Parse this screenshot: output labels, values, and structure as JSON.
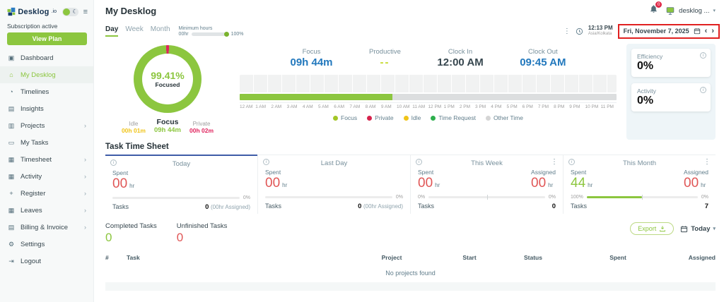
{
  "colors": {
    "accent_green": "#8cc63f",
    "time_blue": "#2278bd",
    "private_red": "#e0245e",
    "soft_red": "#e05656",
    "idle_yellow": "#f0c419",
    "brand_navy": "#14314f",
    "annotation_red": "#e02020",
    "active_tab_blue": "#3f5ca8"
  },
  "icons": {
    "hamburger": "≡",
    "moon": "☾",
    "chevron_right": "›",
    "chevron_down": "▾",
    "dots_vertical": "⋮",
    "info": "i",
    "dashboard": "▣",
    "my_desklog": "⌂",
    "timelines": "◔",
    "insights": "▤",
    "projects": "▥",
    "my_tasks": "▭",
    "timesheet": "▦",
    "activity": "▦",
    "register": "+",
    "leaves": "▦",
    "billing": "▤",
    "settings": "⚙",
    "logout": "⇥",
    "arrow_left": "‹",
    "arrow_right": "›"
  },
  "sidebar": {
    "brand": "Desklog",
    "brand_suffix": ".io",
    "subscription_status": "Subscription active",
    "view_plan_label": "View Plan",
    "items": [
      {
        "label": "Dashboard"
      },
      {
        "label": "My Desklog"
      },
      {
        "label": "Timelines"
      },
      {
        "label": "Insights"
      },
      {
        "label": "Projects"
      },
      {
        "label": "My Tasks"
      },
      {
        "label": "Timesheet"
      },
      {
        "label": "Activity"
      },
      {
        "label": "Register"
      },
      {
        "label": "Leaves"
      },
      {
        "label": "Billing & Invoice"
      },
      {
        "label": "Settings"
      },
      {
        "label": "Logout"
      }
    ]
  },
  "header": {
    "title": "My Desklog",
    "notification_badge": "0",
    "username": "desklog ..."
  },
  "toolbar": {
    "tabs": [
      "Day",
      "Week",
      "Month"
    ],
    "active_tab": "Day",
    "minimum_hours_label": "Minimum hours",
    "minimum_hours_min": "00hr",
    "minimum_hours_max": "100%",
    "slider_fill_percent": 100,
    "clock_time": "12:13 PM",
    "timezone": "Asia/Kolkata",
    "date_label": "Fri, November 7, 2025"
  },
  "focus_summary": {
    "percent": "99.41%",
    "caption": "Focused",
    "idle_label": "Idle",
    "idle_value": "00h 01m",
    "focus_label": "Focus",
    "focus_value": "09h 44m",
    "private_label": "Private",
    "private_value": "00h 02m"
  },
  "day_stats": {
    "focus_label": "Focus",
    "focus_value": "09h 44m",
    "productive_label": "Productive",
    "productive_value": "--",
    "clock_in_label": "Clock In",
    "clock_in_value": "12:00 AM",
    "clock_out_label": "Clock Out",
    "clock_out_value": "09:45 AM"
  },
  "timeline": {
    "focus_bar_percent": 40.6,
    "hours": [
      "12 AM",
      "1 AM",
      "2 AM",
      "3 AM",
      "4 AM",
      "5 AM",
      "6 AM",
      "7 AM",
      "8 AM",
      "9 AM",
      "10 AM",
      "11 AM",
      "12 PM",
      "1 PM",
      "2 PM",
      "3 PM",
      "4 PM",
      "5 PM",
      "6 PM",
      "7 PM",
      "8 PM",
      "9 PM",
      "10 PM",
      "11 PM"
    ],
    "legend": [
      {
        "label": "Focus"
      },
      {
        "label": "Private"
      },
      {
        "label": "Idle"
      },
      {
        "label": "Time Request"
      },
      {
        "label": "Other Time"
      }
    ]
  },
  "metrics": {
    "efficiency_label": "Efficiency",
    "efficiency_value": "0%",
    "activity_label": "Activity",
    "activity_value": "0%"
  },
  "task_time_sheet": {
    "title": "Task Time Sheet",
    "today": {
      "title": "Today",
      "spent_label": "Spent",
      "spent_value": "00",
      "spent_unit": "hr",
      "bar_percent": 0,
      "percent": "0%",
      "tasks_label": "Tasks",
      "tasks_value": "0",
      "tasks_assigned": "(00hr Assigned)"
    },
    "last_day": {
      "title": "Last Day",
      "spent_label": "Spent",
      "spent_value": "00",
      "spent_unit": "hr",
      "bar_percent": 0,
      "percent": "0%",
      "tasks_label": "Tasks",
      "tasks_value": "0",
      "tasks_assigned": "(00hr Assigned)"
    },
    "this_week": {
      "title": "This Week",
      "spent_label": "Spent",
      "spent_value": "00",
      "spent_unit": "hr",
      "assigned_label": "Assigned",
      "assigned_value": "00",
      "assigned_unit": "hr",
      "spent_percent": "0%",
      "assigned_percent": "0%",
      "bar_percent": 0,
      "tasks_label": "Tasks",
      "tasks_value": "0"
    },
    "this_month": {
      "title": "This Month",
      "spent_label": "Spent",
      "spent_value": "44",
      "spent_unit": "hr",
      "assigned_label": "Assigned",
      "assigned_value": "00",
      "assigned_unit": "hr",
      "spent_percent": "100%",
      "assigned_percent": "0%",
      "bar_percent": 50,
      "tasks_label": "Tasks",
      "tasks_value": "7"
    }
  },
  "tasks_overview": {
    "completed_label": "Completed Tasks",
    "completed_value": "0",
    "unfinished_label": "Unfinished Tasks",
    "unfinished_value": "0"
  },
  "actions": {
    "export_label": "Export",
    "range_label": "Today"
  },
  "projects_table": {
    "headers": [
      "#",
      "Task",
      "Project",
      "Start",
      "Status",
      "Spent",
      "Assigned"
    ],
    "empty_message": "No projects found"
  }
}
